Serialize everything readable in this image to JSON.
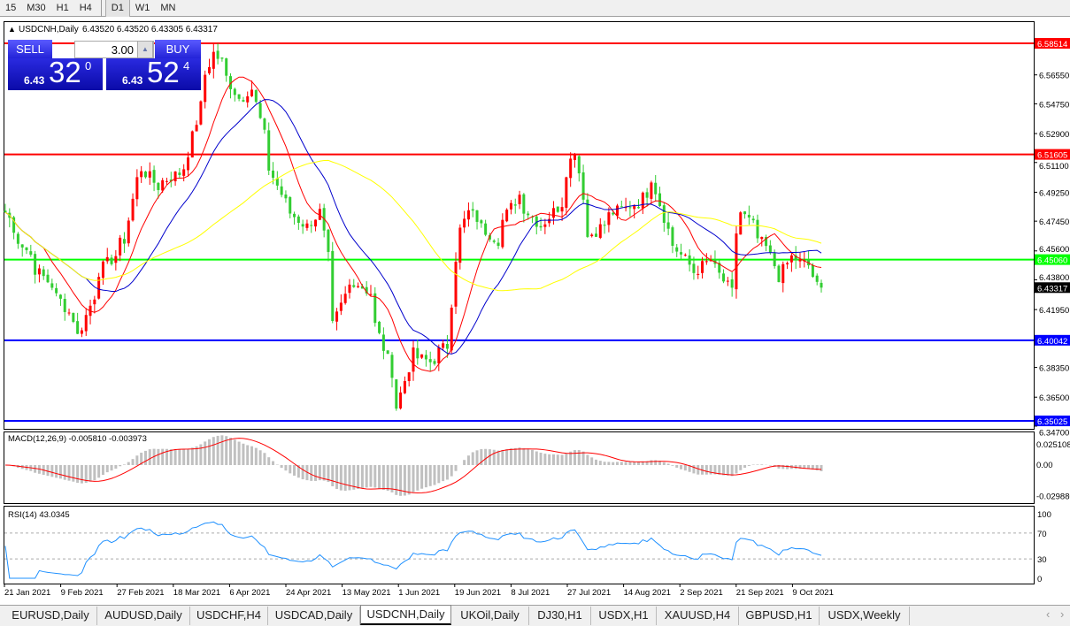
{
  "timeframes": [
    "15",
    "M30",
    "H1",
    "H4",
    "D1",
    "W1",
    "MN"
  ],
  "selected_timeframe": "D1",
  "header": {
    "symbol": "USDCNH,Daily",
    "ohlc": "6.43520 6.43520 6.43305 6.43317"
  },
  "trade": {
    "sell_label": "SELL",
    "buy_label": "BUY",
    "lot": "3.00",
    "sell_small": "6.43",
    "sell_large": "32",
    "sell_exp": "0",
    "buy_small": "6.43",
    "buy_large": "52",
    "buy_exp": "4"
  },
  "colors": {
    "bull": "#ff0000",
    "bear": "#32cd32",
    "ma_fast": "#ff0000",
    "ma_mid": "#0000cc",
    "ma_slow": "#ffff00",
    "rsi": "#1e90ff",
    "macd_hist": "#c0c0c0",
    "macd_signal": "#ff0000"
  },
  "chart_data": {
    "type": "candlestick",
    "price_axis_ticks": [
      "6.56550",
      "6.54750",
      "6.52900",
      "6.51100",
      "6.49250",
      "6.47450",
      "6.45600",
      "6.43800",
      "6.41950",
      "6.38350",
      "6.36500",
      "6.34700"
    ],
    "ylim": [
      6.347,
      6.601
    ],
    "current_price": "6.43317",
    "levels": [
      {
        "value": "6.58514",
        "color": "#ff0000"
      },
      {
        "value": "6.51605",
        "color": "#ff0000"
      },
      {
        "value": "6.45060",
        "color": "#00ff00"
      },
      {
        "value": "6.40042",
        "color": "#0000ff"
      },
      {
        "value": "6.35025",
        "color": "#0000ff"
      }
    ],
    "date_labels": [
      "21 Jan 2021",
      "9 Feb 2021",
      "27 Feb 2021",
      "18 Mar 2021",
      "6 Apr 2021",
      "24 Apr 2021",
      "13 May 2021",
      "1 Jun 2021",
      "19 Jun 2021",
      "8 Jul 2021",
      "27 Jul 2021",
      "14 Aug 2021",
      "2 Sep 2021",
      "21 Sep 2021",
      "9 Oct 2021"
    ],
    "price_path": [
      [
        "2021-01-21",
        6.48
      ],
      [
        "2021-01-31",
        6.447
      ],
      [
        "2021-02-09",
        6.425
      ],
      [
        "2021-02-15",
        6.403
      ],
      [
        "2021-02-21",
        6.441
      ],
      [
        "2021-03-02",
        6.463
      ],
      [
        "2021-03-06",
        6.513
      ],
      [
        "2021-03-12",
        6.496
      ],
      [
        "2021-03-22",
        6.508
      ],
      [
        "2021-03-26",
        6.546
      ],
      [
        "2021-03-31",
        6.579
      ],
      [
        "2021-04-04",
        6.568
      ],
      [
        "2021-04-08",
        6.551
      ],
      [
        "2021-04-13",
        6.557
      ],
      [
        "2021-04-17",
        6.518
      ],
      [
        "2021-04-23",
        6.486
      ],
      [
        "2021-05-01",
        6.469
      ],
      [
        "2021-05-05",
        6.48
      ],
      [
        "2021-05-10",
        6.409
      ],
      [
        "2021-05-15",
        6.441
      ],
      [
        "2021-05-21",
        6.43
      ],
      [
        "2021-05-25",
        6.403
      ],
      [
        "2021-05-31",
        6.359
      ],
      [
        "2021-06-04",
        6.392
      ],
      [
        "2021-06-10",
        6.387
      ],
      [
        "2021-06-16",
        6.397
      ],
      [
        "2021-06-18",
        6.452
      ],
      [
        "2021-06-23",
        6.48
      ],
      [
        "2021-07-02",
        6.463
      ],
      [
        "2021-07-09",
        6.491
      ],
      [
        "2021-07-17",
        6.469
      ],
      [
        "2021-07-23",
        6.486
      ],
      [
        "2021-07-28",
        6.519
      ],
      [
        "2021-08-01",
        6.463
      ],
      [
        "2021-08-10",
        6.48
      ],
      [
        "2021-08-18",
        6.486
      ],
      [
        "2021-08-23",
        6.502
      ],
      [
        "2021-08-27",
        6.469
      ],
      [
        "2021-09-05",
        6.441
      ],
      [
        "2021-09-11",
        6.452
      ],
      [
        "2021-09-17",
        6.43
      ],
      [
        "2021-09-21",
        6.48
      ],
      [
        "2021-09-29",
        6.458
      ],
      [
        "2021-10-03",
        6.436
      ],
      [
        "2021-10-07",
        6.452
      ],
      [
        "2021-10-13",
        6.447
      ],
      [
        "2021-10-16",
        6.427
      ],
      [
        "2021-10-18",
        6.43317
      ]
    ],
    "macd": {
      "label": "MACD(12,26,9) -0.005810 -0.003973",
      "ticks": [
        "0.025108",
        "0.00",
        "-0.029880"
      ]
    },
    "rsi": {
      "label": "RSI(14) 43.0345",
      "ticks": [
        "100",
        "70",
        "30",
        "0"
      ]
    }
  },
  "tabs": [
    "EURUSD,Daily",
    "AUDUSD,Daily",
    "USDCHF,H4",
    "USDCAD,Daily",
    "USDCNH,Daily",
    "UKOil,Daily",
    "DJ30,H1",
    "USDX,H1",
    "XAUUSD,H4",
    "GBPUSD,H1",
    "USDX,Weekly"
  ],
  "active_tab": "USDCNH,Daily",
  "scroll": {
    "left": "‹",
    "right": "›"
  }
}
